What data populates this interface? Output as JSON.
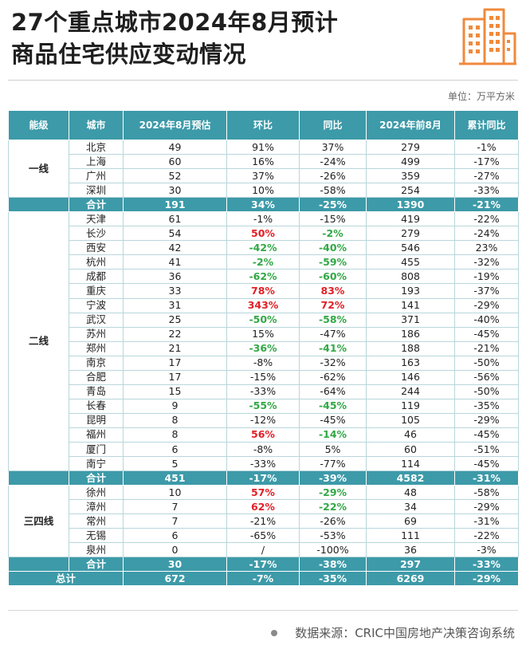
{
  "title": {
    "line1": "27个重点城市2024年8月预计",
    "line2": "商品住宅供应变动情况"
  },
  "logo": {
    "icon": "building-icon",
    "color": "#f08a3c"
  },
  "unit": "单位：万平方米",
  "headers": [
    "能级",
    "城市",
    "2024年8月预估",
    "环比",
    "同比",
    "2024年前8月",
    "累计同比"
  ],
  "colors": {
    "header_bg": "#3d9aa8",
    "up": "#e21f26",
    "down": "#31a845"
  },
  "groups": [
    {
      "tier": "一线",
      "rows": [
        {
          "city": "北京",
          "est": "49",
          "mom": "91%",
          "yoy": "37%",
          "ytd": "279",
          "cum": "-1%"
        },
        {
          "city": "上海",
          "est": "60",
          "mom": "16%",
          "yoy": "-24%",
          "ytd": "499",
          "cum": "-17%"
        },
        {
          "city": "广州",
          "est": "52",
          "mom": "37%",
          "yoy": "-26%",
          "ytd": "359",
          "cum": "-27%"
        },
        {
          "city": "深圳",
          "est": "30",
          "mom": "10%",
          "yoy": "-58%",
          "ytd": "254",
          "cum": "-33%"
        }
      ],
      "sum": {
        "label": "合计",
        "est": "191",
        "mom": "34%",
        "yoy": "-25%",
        "ytd": "1390",
        "cum": "-21%"
      }
    },
    {
      "tier": "二线",
      "rows": [
        {
          "city": "天津",
          "est": "61",
          "mom": "-1%",
          "yoy": "-15%",
          "ytd": "419",
          "cum": "-22%"
        },
        {
          "city": "长沙",
          "est": "54",
          "mom": "50%",
          "mom_hl": "up",
          "yoy": "-2%",
          "yoy_hl": "down",
          "ytd": "279",
          "cum": "-24%"
        },
        {
          "city": "西安",
          "est": "42",
          "mom": "-42%",
          "mom_hl": "down",
          "yoy": "-40%",
          "yoy_hl": "down",
          "ytd": "546",
          "cum": "23%"
        },
        {
          "city": "杭州",
          "est": "41",
          "mom": "-2%",
          "mom_hl": "down",
          "yoy": "-59%",
          "yoy_hl": "down",
          "ytd": "455",
          "cum": "-32%"
        },
        {
          "city": "成都",
          "est": "36",
          "mom": "-62%",
          "mom_hl": "down",
          "yoy": "-60%",
          "yoy_hl": "down",
          "ytd": "808",
          "cum": "-19%"
        },
        {
          "city": "重庆",
          "est": "33",
          "mom": "78%",
          "mom_hl": "up",
          "yoy": "83%",
          "yoy_hl": "up",
          "ytd": "193",
          "cum": "-37%"
        },
        {
          "city": "宁波",
          "est": "31",
          "mom": "343%",
          "mom_hl": "up",
          "yoy": "72%",
          "yoy_hl": "up",
          "ytd": "141",
          "cum": "-29%"
        },
        {
          "city": "武汉",
          "est": "25",
          "mom": "-50%",
          "mom_hl": "down",
          "yoy": "-58%",
          "yoy_hl": "down",
          "ytd": "371",
          "cum": "-40%"
        },
        {
          "city": "苏州",
          "est": "22",
          "mom": "15%",
          "yoy": "-47%",
          "ytd": "186",
          "cum": "-45%"
        },
        {
          "city": "郑州",
          "est": "21",
          "mom": "-36%",
          "mom_hl": "down",
          "yoy": "-41%",
          "yoy_hl": "down",
          "ytd": "188",
          "cum": "-21%"
        },
        {
          "city": "南京",
          "est": "17",
          "mom": "-8%",
          "yoy": "-32%",
          "ytd": "163",
          "cum": "-50%"
        },
        {
          "city": "合肥",
          "est": "17",
          "mom": "-15%",
          "yoy": "-62%",
          "ytd": "146",
          "cum": "-56%"
        },
        {
          "city": "青岛",
          "est": "15",
          "mom": "-33%",
          "yoy": "-64%",
          "ytd": "244",
          "cum": "-50%"
        },
        {
          "city": "长春",
          "est": "9",
          "mom": "-55%",
          "mom_hl": "down",
          "yoy": "-45%",
          "yoy_hl": "down",
          "ytd": "119",
          "cum": "-35%"
        },
        {
          "city": "昆明",
          "est": "8",
          "mom": "-12%",
          "yoy": "-45%",
          "ytd": "105",
          "cum": "-29%"
        },
        {
          "city": "福州",
          "est": "8",
          "mom": "56%",
          "mom_hl": "up",
          "yoy": "-14%",
          "yoy_hl": "down",
          "ytd": "46",
          "cum": "-45%"
        },
        {
          "city": "厦门",
          "est": "6",
          "mom": "-8%",
          "yoy": "5%",
          "ytd": "60",
          "cum": "-51%"
        },
        {
          "city": "南宁",
          "est": "5",
          "mom": "-33%",
          "yoy": "-77%",
          "ytd": "114",
          "cum": "-45%"
        }
      ],
      "sum": {
        "label": "合计",
        "est": "451",
        "mom": "-17%",
        "yoy": "-39%",
        "ytd": "4582",
        "cum": "-31%"
      }
    },
    {
      "tier": "三四线",
      "rows": [
        {
          "city": "徐州",
          "est": "10",
          "mom": "57%",
          "mom_hl": "up",
          "yoy": "-29%",
          "yoy_hl": "down",
          "ytd": "48",
          "cum": "-58%"
        },
        {
          "city": "漳州",
          "est": "7",
          "mom": "62%",
          "mom_hl": "up",
          "yoy": "-22%",
          "yoy_hl": "down",
          "ytd": "34",
          "cum": "-29%"
        },
        {
          "city": "常州",
          "est": "7",
          "mom": "-21%",
          "yoy": "-26%",
          "ytd": "69",
          "cum": "-31%"
        },
        {
          "city": "无锡",
          "est": "6",
          "mom": "-65%",
          "yoy": "-53%",
          "ytd": "111",
          "cum": "-22%"
        },
        {
          "city": "泉州",
          "est": "0",
          "mom": "/",
          "yoy": "-100%",
          "ytd": "36",
          "cum": "-3%"
        }
      ],
      "sum": {
        "label": "合计",
        "est": "30",
        "mom": "-17%",
        "yoy": "-38%",
        "ytd": "297",
        "cum": "-33%"
      }
    }
  ],
  "total": {
    "label": "总计",
    "est": "672",
    "mom": "-7%",
    "yoy": "-35%",
    "ytd": "6269",
    "cum": "-29%"
  },
  "source": "数据来源：CRIC中国房地产决策咨询系统"
}
